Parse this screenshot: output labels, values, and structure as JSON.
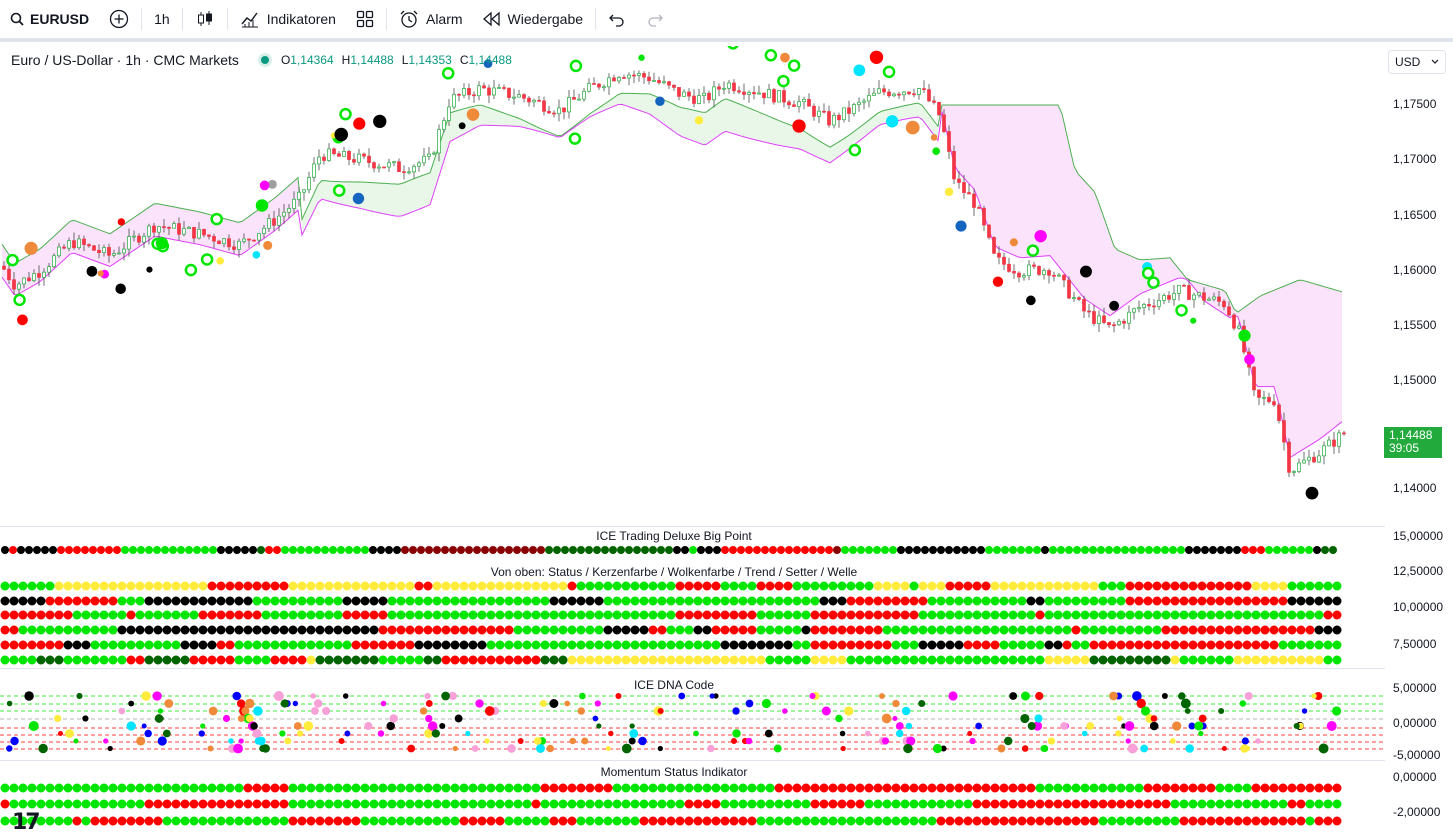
{
  "toolbar": {
    "symbol": "EURUSD",
    "interval": "1h",
    "indicators": "Indikatoren",
    "alarm": "Alarm",
    "replay": "Wiedergabe"
  },
  "legend": {
    "title": "Euro / US-Dollar · 1h · CMC Markets",
    "o_label": "O",
    "o_value": "1,14364",
    "h_label": "H",
    "h_value": "1,14488",
    "l_label": "L",
    "l_value": "1,14353",
    "c_label": "C",
    "c_value": "1,14488"
  },
  "currency": "USD",
  "price_badge": {
    "price": "1,14488",
    "countdown": "39:05"
  },
  "price_axis": [
    "1,17500",
    "1,17000",
    "1,16500",
    "1,16000",
    "1,15500",
    "1,15000",
    "1,14000"
  ],
  "panes": {
    "bigpoint": {
      "title": "ICE Trading Deluxe Big Point",
      "axis": [
        "15,00000"
      ]
    },
    "status": {
      "title": "Von oben: Status / Kerzenfarbe / Wolkenfarbe / Trend / Setter / Welle",
      "axis": [
        "12,50000",
        "10,00000",
        "7,50000"
      ]
    },
    "dna": {
      "title": "ICE DNA Code",
      "axis": [
        "5,00000",
        "0,00000",
        "-5,00000"
      ]
    },
    "momentum": {
      "title": "Momentum Status Indikator",
      "axis": [
        "0,00000",
        "-2,00000"
      ]
    }
  },
  "colors": {
    "bull": "#22ab3c",
    "bear": "#f23645",
    "cloud_bull": "#e8f7e8",
    "cloud_bear": "#fbe3fb",
    "upper_line": "#e040fb",
    "lower_line": "#4caf50",
    "lime": "#00e600",
    "red": "#ff0000",
    "dark_red": "#8b0000",
    "black": "#000000"
  },
  "chart_data": {
    "type": "candlestick",
    "symbol": "EURUSD",
    "ylim": [
      1.138,
      1.181
    ],
    "anchors": [
      [
        0,
        1.1605
      ],
      [
        15,
        1.1585
      ],
      [
        40,
        1.1598
      ],
      [
        72,
        1.1625
      ],
      [
        110,
        1.1612
      ],
      [
        155,
        1.164
      ],
      [
        200,
        1.1632
      ],
      [
        240,
        1.1622
      ],
      [
        275,
        1.1645
      ],
      [
        300,
        1.1665
      ],
      [
        320,
        1.1705
      ],
      [
        360,
        1.17
      ],
      [
        400,
        1.1692
      ],
      [
        430,
        1.17
      ],
      [
        450,
        1.1755
      ],
      [
        480,
        1.1765
      ],
      [
        520,
        1.1758
      ],
      [
        560,
        1.1745
      ],
      [
        590,
        1.1765
      ],
      [
        620,
        1.178
      ],
      [
        650,
        1.1775
      ],
      [
        680,
        1.176
      ],
      [
        705,
        1.1755
      ],
      [
        725,
        1.177
      ],
      [
        760,
        1.1762
      ],
      [
        800,
        1.1752
      ],
      [
        830,
        1.1735
      ],
      [
        850,
        1.1745
      ],
      [
        880,
        1.1762
      ],
      [
        920,
        1.1765
      ],
      [
        940,
        1.174
      ],
      [
        955,
        1.168
      ],
      [
        975,
        1.166
      ],
      [
        995,
        1.1608
      ],
      [
        1020,
        1.1598
      ],
      [
        1050,
        1.16
      ],
      [
        1085,
        1.156
      ],
      [
        1110,
        1.1545
      ],
      [
        1140,
        1.1565
      ],
      [
        1180,
        1.158
      ],
      [
        1225,
        1.1568
      ],
      [
        1240,
        1.154
      ],
      [
        1255,
        1.148
      ],
      [
        1275,
        1.148
      ],
      [
        1290,
        1.1415
      ],
      [
        1320,
        1.1432
      ],
      [
        1345,
        1.145
      ]
    ]
  }
}
